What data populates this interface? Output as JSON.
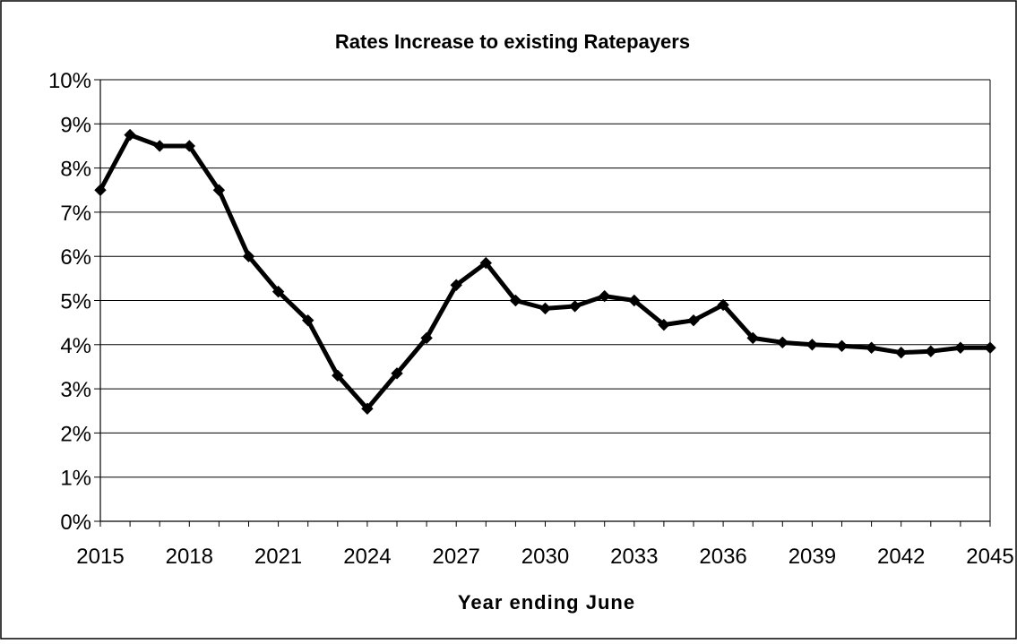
{
  "chart_data": {
    "type": "line",
    "title": "Rates Increase to existing Ratepayers",
    "xlabel": "Year ending June",
    "ylabel": "",
    "x": [
      2015,
      2016,
      2017,
      2018,
      2019,
      2020,
      2021,
      2022,
      2023,
      2024,
      2025,
      2026,
      2027,
      2028,
      2029,
      2030,
      2031,
      2032,
      2033,
      2034,
      2035,
      2036,
      2037,
      2038,
      2039,
      2040,
      2041,
      2042,
      2043,
      2044,
      2045
    ],
    "series": [
      {
        "name": "",
        "values": [
          7.5,
          8.75,
          8.5,
          8.5,
          7.5,
          6.0,
          5.2,
          4.55,
          3.3,
          2.55,
          3.35,
          4.15,
          5.35,
          5.85,
          5.0,
          4.82,
          4.87,
          5.1,
          5.0,
          4.45,
          4.55,
          4.9,
          4.15,
          4.05,
          4.0,
          3.97,
          3.93,
          3.82,
          3.85,
          3.93,
          3.93
        ]
      }
    ],
    "xticks": [
      "2015",
      "2018",
      "2021",
      "2024",
      "2027",
      "2030",
      "2033",
      "2036",
      "2039",
      "2042",
      "2045"
    ],
    "yticks": [
      "0%",
      "1%",
      "2%",
      "3%",
      "4%",
      "5%",
      "6%",
      "7%",
      "8%",
      "9%",
      "10%"
    ],
    "xlim": [
      2015,
      2045
    ],
    "ylim": [
      0,
      10
    ],
    "grid": "horizontal",
    "line_color": "#000000",
    "marker": "diamond"
  }
}
